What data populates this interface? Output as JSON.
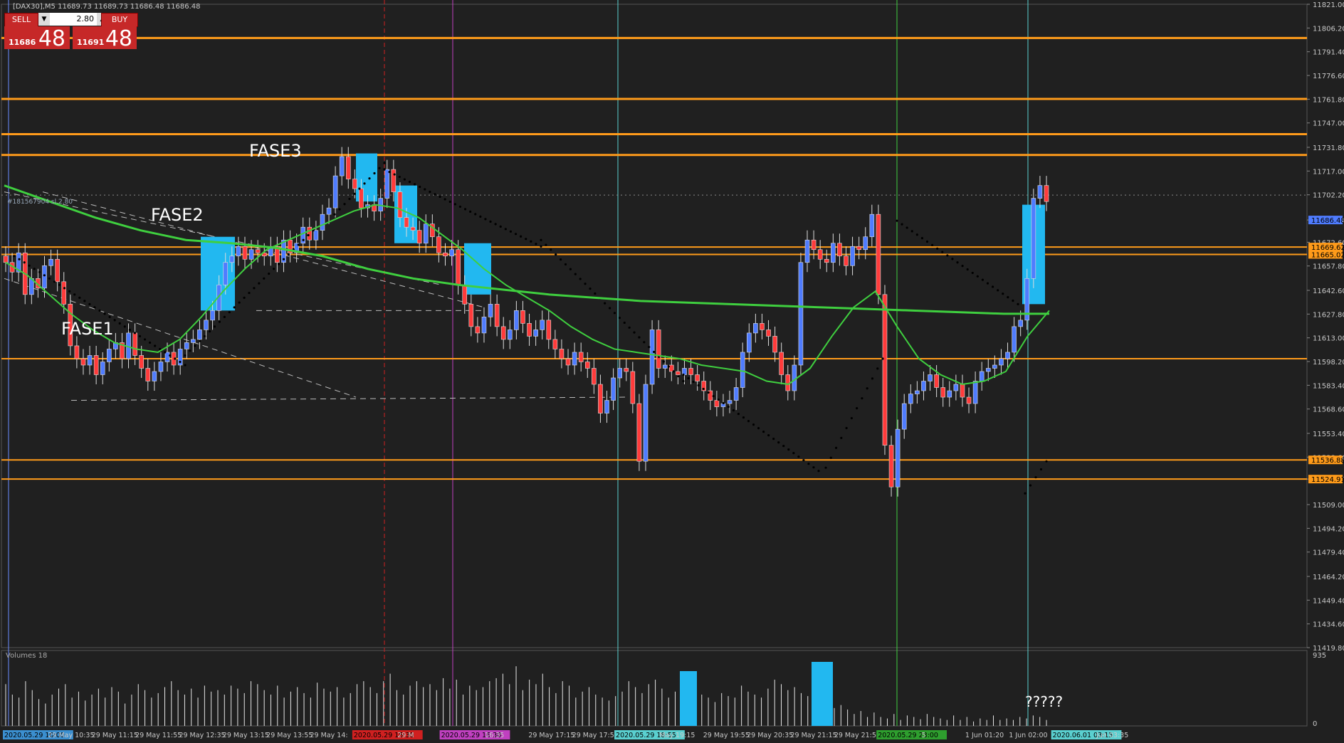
{
  "header": {
    "symbol_info": "[DAX30],M5  11689.73 11689.73 11686.48 11686.48"
  },
  "trade_panel": {
    "sell_label": "SELL",
    "buy_label": "BUY",
    "lot": "2.80",
    "sell_small": "11686",
    "sell_big": "48",
    "buy_small": "11691",
    "buy_big": "48",
    "dropdown_icon": "chevron-down-icon",
    "spin_icon": "chevron-up-icon"
  },
  "annotations": {
    "fase1": "FASE1",
    "fase2": "FASE2",
    "fase3": "FASE3",
    "question": "?????",
    "trendline_label": "#181567904 sl 2.80"
  },
  "volume_panel": {
    "label": "Volumes 18",
    "max_label": "935",
    "min_label": "0"
  },
  "colors": {
    "background": "#202020",
    "bull": "#4f7cff",
    "bear": "#ff3b3b",
    "orange": "#ff9b1a",
    "ma": "#3fcf3f",
    "box": "#22b8f0",
    "dots": "#000000",
    "axis_text": "#c8c8c8"
  },
  "chart_data": {
    "type": "candlestick",
    "symbol": "DAX30",
    "timeframe": "M5",
    "ylim": [
      11419.8,
      11821.0
    ],
    "y_ticks": [
      "11821.00",
      "11806.20",
      "11791.40",
      "11776.60",
      "11761.80",
      "11747.00",
      "11731.80",
      "11717.00",
      "11702.20",
      "11686.48",
      "11672.60",
      "11657.80",
      "11642.60",
      "11627.80",
      "11613.00",
      "11598.20",
      "11583.40",
      "11568.60",
      "11553.40",
      "11538.60",
      "11524.91",
      "11509.00",
      "11494.20",
      "11479.40",
      "11464.20",
      "11449.40",
      "11434.60",
      "11419.80"
    ],
    "price_labels": [
      {
        "value": 11686.48,
        "text": "11686.48",
        "color": "#4f7cff"
      },
      {
        "value": 11669.62,
        "text": "11669.62",
        "color": "#ff9b1a"
      },
      {
        "value": 11665.02,
        "text": "11665.02",
        "color": "#ff9b1a"
      },
      {
        "value": 11536.88,
        "text": "11536.88",
        "color": "#ff9b1a"
      },
      {
        "value": 11524.91,
        "text": "11524.91",
        "color": "#ff9b1a"
      }
    ],
    "x_tick_labels": [
      "2020.05.29 10:00",
      "29 May 10:35",
      "29 May 11:15",
      "29 May 11:55",
      "29 May 12:35",
      "29 May 13:15",
      "29 May 13:55",
      "29 May 14:",
      "2020.05.29 15:30",
      "29 M",
      "2020.05.29 16:30",
      "16:35",
      "29 May 17:15",
      "29 May 17:55",
      "2020.05.29 18:55",
      "May 19:15",
      "29 May 19:55",
      "29 May 20:35",
      "29 May 21:15",
      "29 May 21:55",
      "2020.05.29 23:00",
      "5",
      "1 Jun 01:20",
      "1 Jun 02:00",
      "2020.06.01 03:15",
      "Jun 03:35"
    ],
    "horizontal_levels": [
      11800,
      11762,
      11740,
      11727,
      11669.62,
      11665.02,
      11600,
      11536.88,
      11524.91
    ],
    "ohlc_anchor_closes": [
      11660,
      11654,
      11666,
      11640,
      11650,
      11644,
      11658,
      11662,
      11648,
      11634,
      11608,
      11600,
      11596,
      11602,
      11590,
      11598,
      11606,
      11610,
      11600,
      11616,
      11602,
      11594,
      11586,
      11592,
      11598,
      11604,
      11596,
      11606,
      11610,
      11612,
      11618,
      11624,
      11630,
      11646,
      11660,
      11664,
      11670,
      11662,
      11668,
      11666,
      11664,
      11670,
      11660,
      11674,
      11666,
      11672,
      11682,
      11674,
      11680,
      11690,
      11694,
      11714,
      11726,
      11712,
      11706,
      11694,
      11696,
      11692,
      11700,
      11718,
      11704,
      11688,
      11682,
      11680,
      11672,
      11684,
      11676,
      11666,
      11664,
      11668,
      11646,
      11634,
      11620,
      11616,
      11626,
      11634,
      11620,
      11612,
      11618,
      11630,
      11622,
      11614,
      11618,
      11624,
      11612,
      11606,
      11600,
      11596,
      11604,
      11598,
      11594,
      11584,
      11566,
      11574,
      11588,
      11594,
      11592,
      11572,
      11536,
      11584,
      11618,
      11594,
      11596,
      11592,
      11590,
      11594,
      11590,
      11586,
      11580,
      11574,
      11570,
      11572,
      11574,
      11582,
      11604,
      11616,
      11622,
      11618,
      11614,
      11604,
      11590,
      11580,
      11596,
      11660,
      11674,
      11668,
      11662,
      11660,
      11672,
      11664,
      11658,
      11670,
      11668,
      11676,
      11690,
      11640,
      11546,
      11520,
      11556,
      11572,
      11578,
      11580,
      11586,
      11590,
      11582,
      11576,
      11580,
      11584,
      11576,
      11572,
      11586,
      11592,
      11594,
      11596,
      11600,
      11604,
      11620,
      11624,
      11650,
      11700,
      11708,
      11698
    ],
    "ma_fast": [
      11660,
      11652,
      11640,
      11628,
      11618,
      11610,
      11606,
      11604,
      11612,
      11626,
      11642,
      11656,
      11668,
      11674,
      11680,
      11686,
      11692,
      11696,
      11694,
      11688,
      11678,
      11668,
      11656,
      11646,
      11638,
      11630,
      11620,
      11612,
      11606,
      11604,
      11602,
      11600,
      11596,
      11594,
      11592,
      11586,
      11584,
      11594,
      11614,
      11632,
      11642,
      11620,
      11600,
      11590,
      11584,
      11586,
      11592,
      11614,
      11630
    ],
    "ma_slow": [
      11708,
      11698,
      11688,
      11680,
      11674,
      11672,
      11669,
      11664,
      11656,
      11650,
      11646,
      11643,
      11640,
      11638,
      11636,
      11635,
      11634,
      11633,
      11632,
      11631,
      11630,
      11629,
      11628,
      11628
    ],
    "parabolic_sar_segments": [
      [
        11664,
        11596
      ],
      [
        11602,
        11680
      ],
      [
        11690,
        11722
      ],
      [
        11718,
        11670
      ],
      [
        11674,
        11586
      ],
      [
        11590,
        11530
      ],
      [
        11532,
        11600
      ],
      [
        11686,
        11634
      ],
      [
        11516,
        11536
      ]
    ],
    "boxes": [
      {
        "label": "",
        "from": 11630,
        "to": 11676
      },
      {
        "label": "",
        "from": 11698,
        "to": 11728
      },
      {
        "label": "",
        "from": 11672,
        "to": 11708
      },
      {
        "label": "",
        "from": 11640,
        "to": 11672
      },
      {
        "label": "",
        "from": 11634,
        "to": 11696
      }
    ],
    "volume_panel_max": 935,
    "volume_values": [
      560,
      420,
      380,
      600,
      480,
      360,
      300,
      420,
      500,
      560,
      380,
      460,
      340,
      420,
      500,
      380,
      520,
      460,
      300,
      420,
      560,
      480,
      380,
      440,
      520,
      600,
      480,
      420,
      500,
      380,
      540,
      460,
      480,
      420,
      540,
      500,
      440,
      600,
      560,
      480,
      420,
      540,
      380,
      460,
      520,
      440,
      380,
      580,
      500,
      460,
      520,
      380,
      440,
      560,
      600,
      520,
      440,
      600,
      700,
      480,
      420,
      540,
      600,
      520,
      560,
      480,
      640,
      500,
      620,
      420,
      540,
      480,
      520,
      600,
      640,
      700,
      560,
      800,
      480,
      620,
      560,
      700,
      520,
      440,
      600,
      540,
      380,
      460,
      520,
      420,
      380,
      340,
      400,
      460,
      600,
      520,
      440,
      560,
      620,
      500,
      380,
      460,
      420,
      540,
      460,
      420,
      380,
      320,
      440,
      400,
      380,
      540,
      460,
      420,
      380,
      500,
      620,
      560,
      480,
      520,
      440,
      400,
      380,
      460,
      300,
      240,
      280,
      220,
      160,
      200,
      120,
      180,
      120,
      100,
      160,
      80,
      140,
      120,
      90,
      160,
      120,
      100,
      80,
      140,
      80,
      120,
      60,
      100,
      80,
      140,
      80,
      100,
      80,
      120,
      100,
      140,
      120,
      80
    ],
    "xlabel": "",
    "ylabel": ""
  }
}
